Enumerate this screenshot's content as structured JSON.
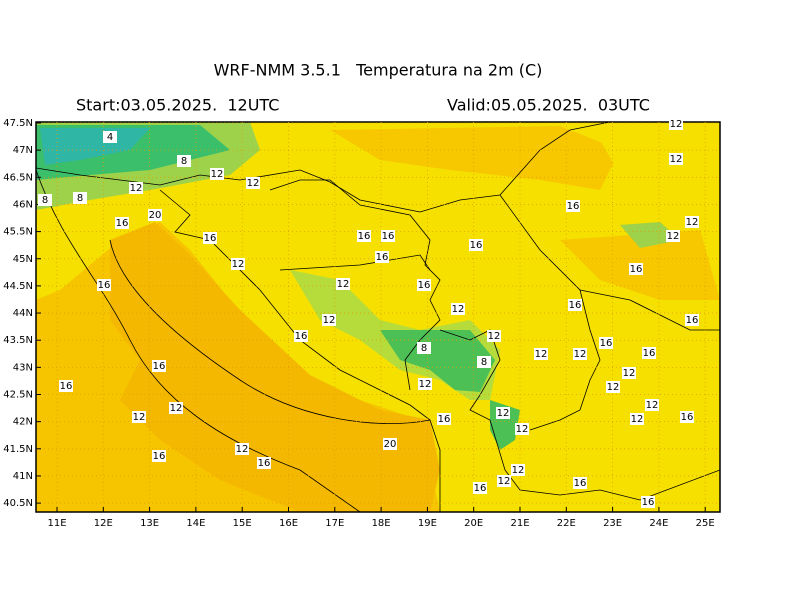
{
  "header": {
    "title": "WRF-NMM 3.5.1   Temperatura na 2m (C)",
    "start": "Start:03.05.2025.  12UTC",
    "valid": "Valid:05.05.2025.  03UTC"
  },
  "map": {
    "lon_ticks": [
      {
        "value": 11,
        "label": "11E"
      },
      {
        "value": 12,
        "label": "12E"
      },
      {
        "value": 13,
        "label": "13E"
      },
      {
        "value": 14,
        "label": "14E"
      },
      {
        "value": 15,
        "label": "15E"
      },
      {
        "value": 16,
        "label": "16E"
      },
      {
        "value": 17,
        "label": "17E"
      },
      {
        "value": 18,
        "label": "18E"
      },
      {
        "value": 19,
        "label": "19E"
      },
      {
        "value": 20,
        "label": "20E"
      },
      {
        "value": 21,
        "label": "21E"
      },
      {
        "value": 22,
        "label": "22E"
      },
      {
        "value": 23,
        "label": "23E"
      },
      {
        "value": 24,
        "label": "24E"
      },
      {
        "value": 25,
        "label": "25E"
      }
    ],
    "lat_ticks": [
      {
        "value": 47.5,
        "label": "47.5N"
      },
      {
        "value": 47,
        "label": "47N"
      },
      {
        "value": 46.5,
        "label": "46.5N"
      },
      {
        "value": 46,
        "label": "46N"
      },
      {
        "value": 45.5,
        "label": "45.5N"
      },
      {
        "value": 45,
        "label": "45N"
      },
      {
        "value": 44.5,
        "label": "44.5N"
      },
      {
        "value": 44,
        "label": "44N"
      },
      {
        "value": 43.5,
        "label": "43.5N"
      },
      {
        "value": 43,
        "label": "43N"
      },
      {
        "value": 42.5,
        "label": "42.5N"
      },
      {
        "value": 42,
        "label": "42N"
      },
      {
        "value": 41.5,
        "label": "41.5N"
      },
      {
        "value": 41,
        "label": "41N"
      },
      {
        "value": 40.5,
        "label": "40.5N"
      }
    ],
    "contour_labels": [
      "4",
      "8",
      "12",
      "12",
      "12",
      "8",
      "8",
      "20",
      "16",
      "16",
      "12",
      "16",
      "12",
      "16",
      "16",
      "16",
      "16",
      "16",
      "12",
      "12",
      "16",
      "8",
      "12",
      "8",
      "12",
      "12",
      "16",
      "16",
      "12",
      "12",
      "12",
      "16",
      "16",
      "12",
      "12",
      "16",
      "12",
      "12",
      "12",
      "12",
      "16",
      "16",
      "16",
      "12",
      "12",
      "16",
      "16",
      "12",
      "12",
      "12",
      "16",
      "16",
      "20",
      "12",
      "12",
      "16",
      "16",
      "16"
    ]
  }
}
